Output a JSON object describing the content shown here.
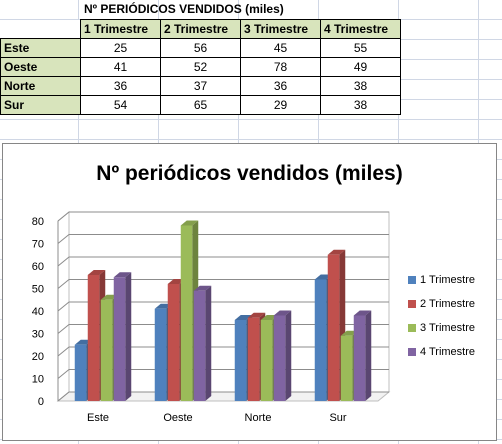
{
  "sheet": {
    "title": "Nº PERIÓDICOS VENDIDOS (miles)",
    "headers": [
      "1 Trimestre",
      "2 Trimestre",
      "3 Trimestre",
      "4 Trimestre"
    ],
    "rows": [
      {
        "label": "Este",
        "values": [
          "25",
          "56",
          "45",
          "55"
        ]
      },
      {
        "label": "Oeste",
        "values": [
          "41",
          "52",
          "78",
          "49"
        ]
      },
      {
        "label": "Norte",
        "values": [
          "36",
          "37",
          "36",
          "38"
        ]
      },
      {
        "label": "Sur",
        "values": [
          "54",
          "65",
          "29",
          "38"
        ]
      }
    ]
  },
  "chart_data": {
    "type": "bar",
    "title": "Nº periódicos vendidos (miles)",
    "categories": [
      "Este",
      "Oeste",
      "Norte",
      "Sur"
    ],
    "series": [
      {
        "name": "1 Trimestre",
        "values": [
          25,
          41,
          36,
          54
        ],
        "color": "#4f81bd"
      },
      {
        "name": "2 Trimestre",
        "values": [
          56,
          52,
          37,
          65
        ],
        "color": "#c0504d"
      },
      {
        "name": "3 Trimestre",
        "values": [
          45,
          78,
          36,
          29
        ],
        "color": "#9bbb59"
      },
      {
        "name": "4 Trimestre",
        "values": [
          55,
          49,
          38,
          38
        ],
        "color": "#8064a2"
      }
    ],
    "ylim": [
      0,
      80
    ],
    "yticks": [
      0,
      10,
      20,
      30,
      40,
      50,
      60,
      70,
      80
    ],
    "grid": true,
    "legend": "right",
    "style": "3d-clustered-column"
  }
}
